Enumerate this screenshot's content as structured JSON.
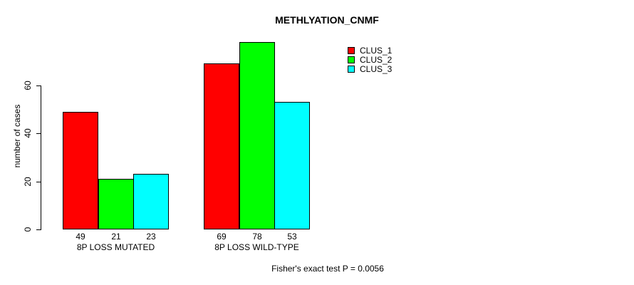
{
  "chart_data": {
    "type": "bar",
    "title": "METHLYATION_CNMF",
    "ylabel": "number of cases",
    "xlabel": "",
    "categories": [
      "8P LOSS MUTATED",
      "8P LOSS WILD-TYPE"
    ],
    "series": [
      {
        "name": "CLUS_1",
        "color": "#ff0000",
        "values": [
          49,
          69
        ]
      },
      {
        "name": "CLUS_2",
        "color": "#00ff00",
        "values": [
          21,
          78
        ]
      },
      {
        "name": "CLUS_3",
        "color": "#00ffff",
        "values": [
          23,
          53
        ]
      }
    ],
    "bar_value_labels": [
      [
        49,
        21,
        23
      ],
      [
        69,
        78,
        53
      ]
    ],
    "yticks": [
      0,
      20,
      40,
      60
    ],
    "ylim": [
      0,
      80
    ],
    "grid": false,
    "legend_position": "top-right",
    "annotation": "Fisher's exact test P = 0.0056",
    "colors": {
      "background": "#ffffff",
      "axis": "#000000",
      "text": "#000000"
    }
  }
}
